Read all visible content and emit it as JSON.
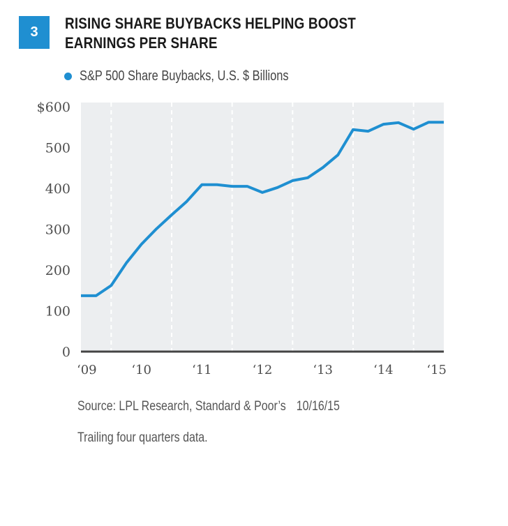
{
  "figure": {
    "number": "3",
    "title_line1": "RISING SHARE BUYBACKS HELPING BOOST",
    "title_line2": "EARNINGS PER SHARE",
    "source": "Source: LPL Research, Standard & Poor’s",
    "date": "10/16/15",
    "note": "Trailing four quarters data."
  },
  "colors": {
    "accent": "#1f8fd1",
    "plot_bg": "#eceef0",
    "axis": "#444444"
  },
  "chart_data": {
    "type": "line",
    "title": "RISING SHARE BUYBACKS HELPING BOOST EARNINGS PER SHARE",
    "xlabel": "",
    "ylabel": "",
    "legend": {
      "position": "top-left",
      "entries": [
        "S&P 500 Share Buybacks, U.S. $ Billions"
      ]
    },
    "ylim": [
      0,
      600
    ],
    "yticks": [
      0,
      100,
      200,
      300,
      400,
      500,
      600
    ],
    "ytick_labels": [
      "0",
      "100",
      "200",
      "300",
      "400",
      "500",
      "$600"
    ],
    "xlim": [
      2009.0,
      2015.0
    ],
    "xtick_labels": [
      {
        "label": "‘09",
        "x": 2009.0
      },
      {
        "label": "‘10",
        "x": 2010.0
      },
      {
        "label": "‘11",
        "x": 2011.0
      },
      {
        "label": "‘12",
        "x": 2012.0
      },
      {
        "label": "‘13",
        "x": 2013.0
      },
      {
        "label": "‘14",
        "x": 2014.0
      },
      {
        "label": "‘15",
        "x": 2015.0
      }
    ],
    "vertical_dashed_lines": [
      2009.5,
      2010.5,
      2011.5,
      2012.5,
      2013.5,
      2014.5
    ],
    "grid": false,
    "series": [
      {
        "name": "S&P 500 Share Buybacks, U.S. $ Billions",
        "x": [
          2009.0,
          2009.25,
          2009.5,
          2009.75,
          2010.0,
          2010.25,
          2010.5,
          2010.75,
          2011.0,
          2011.25,
          2011.5,
          2011.75,
          2012.0,
          2012.25,
          2012.5,
          2012.75,
          2013.0,
          2013.25,
          2013.5,
          2013.75,
          2014.0,
          2014.25,
          2014.5,
          2014.75,
          2015.0
        ],
        "values": [
          137,
          137,
          162,
          217,
          263,
          301,
          335,
          368,
          409,
          409,
          405,
          405,
          390,
          402,
          419,
          426,
          451,
          482,
          544,
          540,
          557,
          561,
          545,
          562,
          562
        ]
      }
    ]
  }
}
